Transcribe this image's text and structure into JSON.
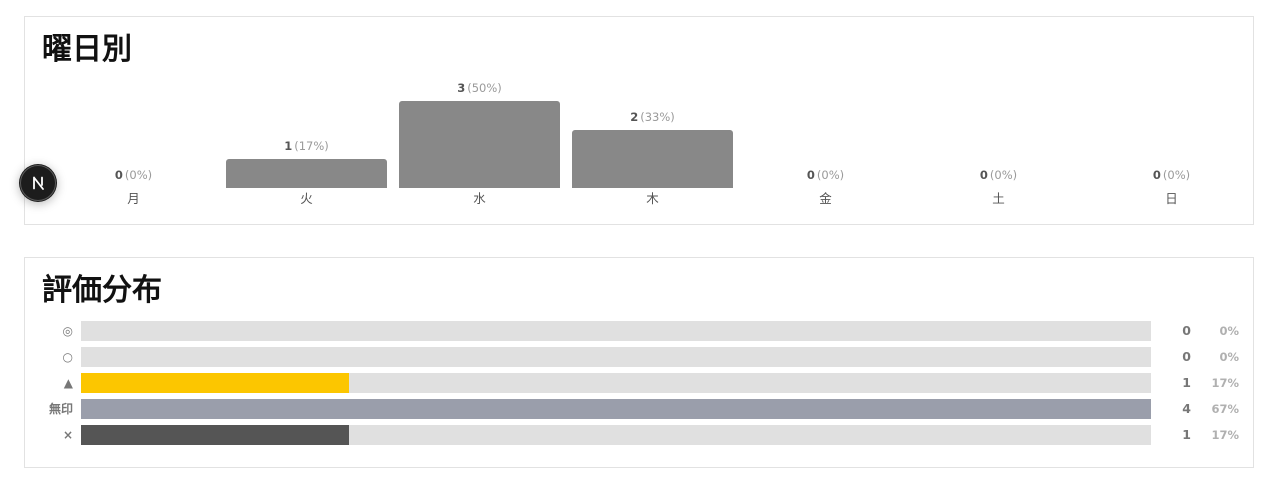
{
  "weekday": {
    "title": "曜日別",
    "days": [
      {
        "label": "月",
        "count": "0",
        "pct": "(0%)"
      },
      {
        "label": "火",
        "count": "1",
        "pct": "(17%)"
      },
      {
        "label": "水",
        "count": "3",
        "pct": "(50%)"
      },
      {
        "label": "木",
        "count": "2",
        "pct": "(33%)"
      },
      {
        "label": "金",
        "count": "0",
        "pct": "(0%)"
      },
      {
        "label": "土",
        "count": "0",
        "pct": "(0%)"
      },
      {
        "label": "日",
        "count": "0",
        "pct": "(0%)"
      }
    ]
  },
  "rating": {
    "title": "評価分布",
    "rows": [
      {
        "label": "◎",
        "count": "0",
        "pct": "0%",
        "color": "#e0e0e0"
      },
      {
        "label": "○",
        "count": "0",
        "pct": "0%",
        "color": "#e0e0e0"
      },
      {
        "label": "▲",
        "count": "1",
        "pct": "17%",
        "color": "#fcc600"
      },
      {
        "label": "無印",
        "count": "4",
        "pct": "67%",
        "color": "#9a9eab"
      },
      {
        "label": "×",
        "count": "1",
        "pct": "17%",
        "color": "#555555"
      }
    ]
  },
  "chart_data": [
    {
      "type": "bar",
      "title": "曜日別",
      "categories": [
        "月",
        "火",
        "水",
        "木",
        "金",
        "土",
        "日"
      ],
      "values": [
        0,
        1,
        3,
        2,
        0,
        0,
        0
      ],
      "percent_labels": [
        "(0%)",
        "(17%)",
        "(50%)",
        "(33%)",
        "(0%)",
        "(0%)",
        "(0%)"
      ],
      "color": "#888888"
    },
    {
      "type": "bar",
      "orientation": "horizontal",
      "title": "評価分布",
      "categories": [
        "◎",
        "○",
        "▲",
        "無印",
        "×"
      ],
      "values": [
        0,
        0,
        1,
        4,
        1
      ],
      "percent_labels": [
        "0%",
        "0%",
        "17%",
        "67%",
        "17%"
      ],
      "colors": [
        "#e0e0e0",
        "#e0e0e0",
        "#fcc600",
        "#9a9eab",
        "#555555"
      ]
    }
  ],
  "badge": {
    "icon": "next-logo-icon"
  }
}
